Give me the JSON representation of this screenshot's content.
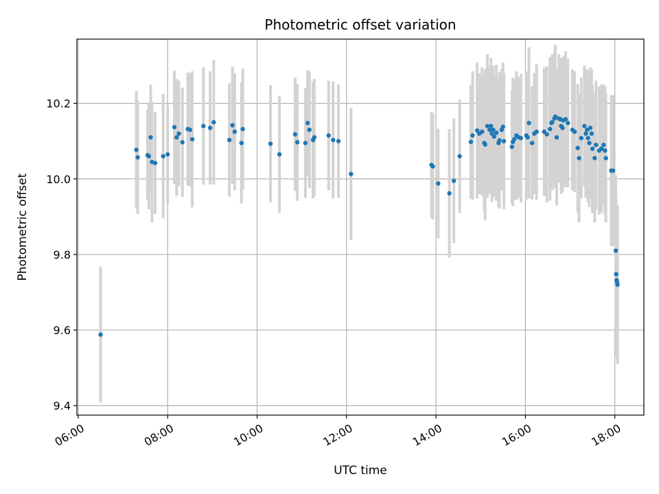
{
  "chart_data": {
    "type": "scatter",
    "title": "Photometric offset variation",
    "xlabel": "UTC time",
    "ylabel": "Photometric offset",
    "x_unit": "hours UTC",
    "xlim": [
      5.97,
      18.65
    ],
    "ylim": [
      9.375,
      10.37
    ],
    "x_ticks": [
      {
        "value": 6,
        "label": "06:00"
      },
      {
        "value": 8,
        "label": "08:00"
      },
      {
        "value": 10,
        "label": "10:00"
      },
      {
        "value": 12,
        "label": "12:00"
      },
      {
        "value": 14,
        "label": "14:00"
      },
      {
        "value": 16,
        "label": "16:00"
      },
      {
        "value": 18,
        "label": "18:00"
      }
    ],
    "y_ticks": [
      {
        "value": 9.4,
        "label": "9.4"
      },
      {
        "value": 9.6,
        "label": "9.6"
      },
      {
        "value": 9.8,
        "label": "9.8"
      },
      {
        "value": 10.0,
        "label": "10.0"
      },
      {
        "value": 10.2,
        "label": "10.2"
      }
    ],
    "grid": true,
    "colors": {
      "point": "#1f77b4",
      "errorbar": "#d3d3d3",
      "grid": "#b0b0b0"
    },
    "points": [
      [
        6.5,
        9.588,
        0.18
      ],
      [
        7.3,
        10.077,
        0.155
      ],
      [
        7.33,
        10.057,
        0.15
      ],
      [
        7.55,
        10.063,
        0.12
      ],
      [
        7.58,
        10.06,
        0.14
      ],
      [
        7.62,
        10.11,
        0.14
      ],
      [
        7.65,
        10.045,
        0.16
      ],
      [
        7.72,
        10.042,
        0.135
      ],
      [
        7.9,
        10.06,
        0.165
      ],
      [
        8.0,
        10.065,
        0.13
      ],
      [
        8.15,
        10.137,
        0.15
      ],
      [
        8.2,
        10.11,
        0.155
      ],
      [
        8.25,
        10.12,
        0.14
      ],
      [
        8.33,
        10.097,
        0.145
      ],
      [
        8.45,
        10.132,
        0.15
      ],
      [
        8.5,
        10.13,
        0.15
      ],
      [
        8.55,
        10.105,
        0.18
      ],
      [
        8.8,
        10.14,
        0.155
      ],
      [
        8.95,
        10.135,
        0.15
      ],
      [
        9.03,
        10.15,
        0.165
      ],
      [
        9.38,
        10.103,
        0.15
      ],
      [
        9.45,
        10.142,
        0.155
      ],
      [
        9.5,
        10.125,
        0.155
      ],
      [
        9.65,
        10.095,
        0.16
      ],
      [
        9.68,
        10.132,
        0.16
      ],
      [
        10.3,
        10.093,
        0.155
      ],
      [
        10.5,
        10.065,
        0.155
      ],
      [
        10.85,
        10.118,
        0.15
      ],
      [
        10.9,
        10.097,
        0.155
      ],
      [
        11.08,
        10.095,
        0.145
      ],
      [
        11.13,
        10.148,
        0.14
      ],
      [
        11.17,
        10.13,
        0.155
      ],
      [
        11.25,
        10.103,
        0.155
      ],
      [
        11.28,
        10.11,
        0.155
      ],
      [
        11.6,
        10.115,
        0.145
      ],
      [
        11.7,
        10.103,
        0.155
      ],
      [
        11.82,
        10.1,
        0.15
      ],
      [
        12.1,
        10.013,
        0.175
      ],
      [
        13.9,
        10.037,
        0.14
      ],
      [
        13.93,
        10.033,
        0.14
      ],
      [
        14.05,
        9.988,
        0.145
      ],
      [
        14.3,
        9.962,
        0.17
      ],
      [
        14.4,
        9.995,
        0.165
      ],
      [
        14.53,
        10.06,
        0.15
      ],
      [
        14.78,
        10.098,
        0.15
      ],
      [
        14.82,
        10.115,
        0.17
      ],
      [
        14.92,
        10.128,
        0.18
      ],
      [
        14.97,
        10.12,
        0.16
      ],
      [
        15.03,
        10.125,
        0.17
      ],
      [
        15.08,
        10.095,
        0.18
      ],
      [
        15.1,
        10.091,
        0.2
      ],
      [
        15.15,
        10.14,
        0.19
      ],
      [
        15.2,
        10.13,
        0.17
      ],
      [
        15.23,
        10.14,
        0.18
      ],
      [
        15.25,
        10.12,
        0.18
      ],
      [
        15.28,
        10.13,
        0.17
      ],
      [
        15.3,
        10.112,
        0.16
      ],
      [
        15.35,
        10.122,
        0.18
      ],
      [
        15.4,
        10.095,
        0.17
      ],
      [
        15.42,
        10.102,
        0.18
      ],
      [
        15.47,
        10.13,
        0.16
      ],
      [
        15.5,
        10.138,
        0.17
      ],
      [
        15.52,
        10.1,
        0.18
      ],
      [
        15.7,
        10.085,
        0.15
      ],
      [
        15.72,
        10.098,
        0.17
      ],
      [
        15.75,
        10.105,
        0.16
      ],
      [
        15.8,
        10.115,
        0.17
      ],
      [
        15.85,
        10.11,
        0.16
      ],
      [
        15.9,
        10.108,
        0.17
      ],
      [
        16.02,
        10.115,
        0.17
      ],
      [
        16.05,
        10.11,
        0.16
      ],
      [
        16.08,
        10.148,
        0.2
      ],
      [
        16.15,
        10.095,
        0.15
      ],
      [
        16.2,
        10.12,
        0.16
      ],
      [
        16.25,
        10.125,
        0.18
      ],
      [
        16.42,
        10.125,
        0.17
      ],
      [
        16.48,
        10.118,
        0.18
      ],
      [
        16.55,
        10.132,
        0.19
      ],
      [
        16.58,
        10.148,
        0.17
      ],
      [
        16.6,
        10.15,
        0.18
      ],
      [
        16.65,
        10.16,
        0.18
      ],
      [
        16.67,
        10.165,
        0.19
      ],
      [
        16.7,
        10.11,
        0.18
      ],
      [
        16.75,
        10.16,
        0.17
      ],
      [
        16.78,
        10.158,
        0.16
      ],
      [
        16.8,
        10.14,
        0.18
      ],
      [
        16.83,
        10.135,
        0.17
      ],
      [
        16.85,
        10.155,
        0.17
      ],
      [
        16.9,
        10.158,
        0.18
      ],
      [
        16.95,
        10.148,
        0.17
      ],
      [
        17.05,
        10.13,
        0.16
      ],
      [
        17.1,
        10.125,
        0.16
      ],
      [
        17.17,
        10.082,
        0.17
      ],
      [
        17.2,
        10.055,
        0.17
      ],
      [
        17.25,
        10.108,
        0.16
      ],
      [
        17.32,
        10.14,
        0.16
      ],
      [
        17.35,
        10.12,
        0.17
      ],
      [
        17.38,
        10.13,
        0.16
      ],
      [
        17.4,
        10.108,
        0.17
      ],
      [
        17.43,
        10.095,
        0.17
      ],
      [
        17.45,
        10.135,
        0.16
      ],
      [
        17.48,
        10.12,
        0.17
      ],
      [
        17.5,
        10.08,
        0.17
      ],
      [
        17.55,
        10.055,
        0.17
      ],
      [
        17.58,
        10.09,
        0.17
      ],
      [
        17.65,
        10.075,
        0.17
      ],
      [
        17.7,
        10.08,
        0.17
      ],
      [
        17.75,
        10.09,
        0.16
      ],
      [
        17.78,
        10.075,
        0.17
      ],
      [
        17.8,
        10.055,
        0.17
      ],
      [
        17.92,
        10.022,
        0.2
      ],
      [
        17.96,
        10.022,
        0.2
      ],
      [
        18.02,
        9.81,
        0.2
      ],
      [
        18.03,
        9.748,
        0.2
      ],
      [
        18.04,
        9.732,
        0.2
      ],
      [
        18.05,
        9.727,
        0.2
      ],
      [
        18.06,
        9.72,
        0.21
      ]
    ]
  }
}
